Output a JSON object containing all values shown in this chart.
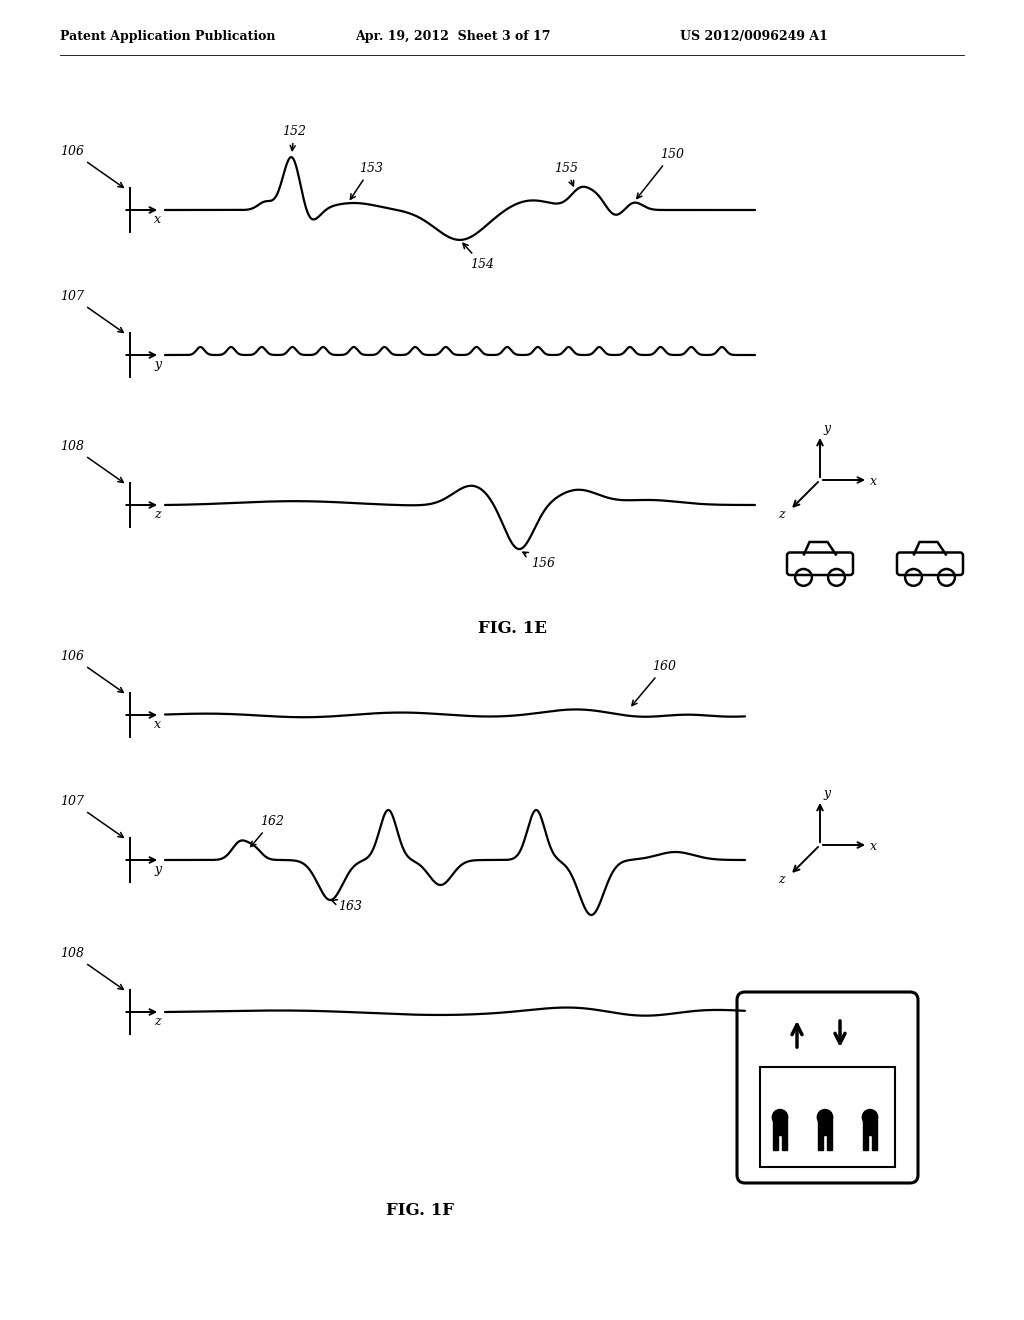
{
  "background_color": "#ffffff",
  "header_left": "Patent Application Publication",
  "header_mid": "Apr. 19, 2012  Sheet 3 of 17",
  "header_right": "US 2012/0096249 A1",
  "fig1e_label": "FIG. 1E",
  "fig1f_label": "FIG. 1F"
}
